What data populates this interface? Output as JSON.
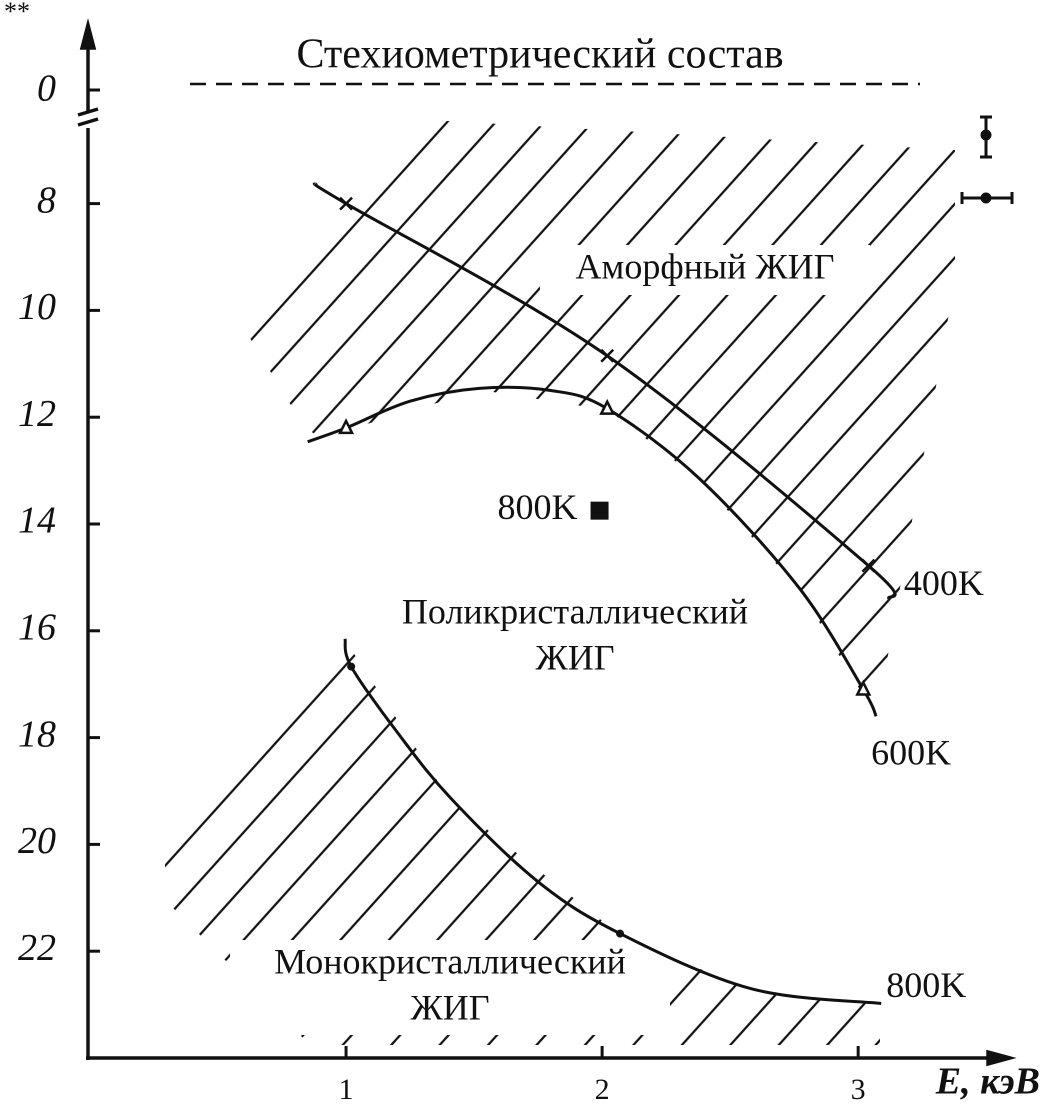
{
  "chart_data": {
    "type": "line",
    "title": "Стехиометрический состав",
    "ylabel": "**",
    "xlabel": "E, кэВ",
    "xlim": [
      0,
      3.55
    ],
    "xticks": [
      1,
      2,
      3
    ],
    "ylim": [
      24,
      6.5
    ],
    "yticks": [
      8,
      10,
      12,
      14,
      16,
      18,
      20,
      22
    ],
    "yticks_above_break": [
      0
    ],
    "color": "#111111",
    "series": [
      {
        "name": "400K",
        "marker": "cross",
        "x": [
          0.88,
          1.0,
          2.02,
          3.04,
          3.12
        ],
        "y": [
          7.63,
          8.0,
          10.85,
          14.78,
          15.4
        ],
        "points": {
          "x": [
            1.0,
            2.02,
            3.04
          ],
          "y": [
            8.0,
            10.85,
            14.78
          ]
        }
      },
      {
        "name": "600K",
        "marker": "triangle",
        "x": [
          0.85,
          1.0,
          1.25,
          1.52,
          1.8,
          2.02,
          2.38,
          2.77,
          3.02,
          3.07
        ],
        "y": [
          12.46,
          12.2,
          11.7,
          11.46,
          11.5,
          11.84,
          13.15,
          15.2,
          17.1,
          17.6
        ],
        "points": {
          "x": [
            1.0,
            2.02,
            3.02
          ],
          "y": [
            12.2,
            11.84,
            17.1
          ]
        }
      },
      {
        "name": "800K",
        "marker": "dot",
        "x": [
          0.996,
          1.02,
          1.2,
          1.41,
          1.75,
          2.07,
          2.58,
          3.09
        ],
        "y": [
          16.15,
          16.67,
          17.9,
          19.14,
          20.7,
          21.67,
          22.7,
          22.98
        ],
        "points": {
          "x": [
            1.02,
            2.07
          ],
          "y": [
            16.67,
            21.67
          ]
        }
      }
    ],
    "point_800K": {
      "label": "800K",
      "x": 1.99,
      "y": 13.75
    },
    "regions": [
      {
        "lines": [
          "Аморфный ЖИГ"
        ]
      },
      {
        "lines": [
          "Поликристаллический",
          "ЖИГ"
        ]
      },
      {
        "lines": [
          "Монокристаллический",
          "ЖИГ"
        ]
      }
    ]
  }
}
